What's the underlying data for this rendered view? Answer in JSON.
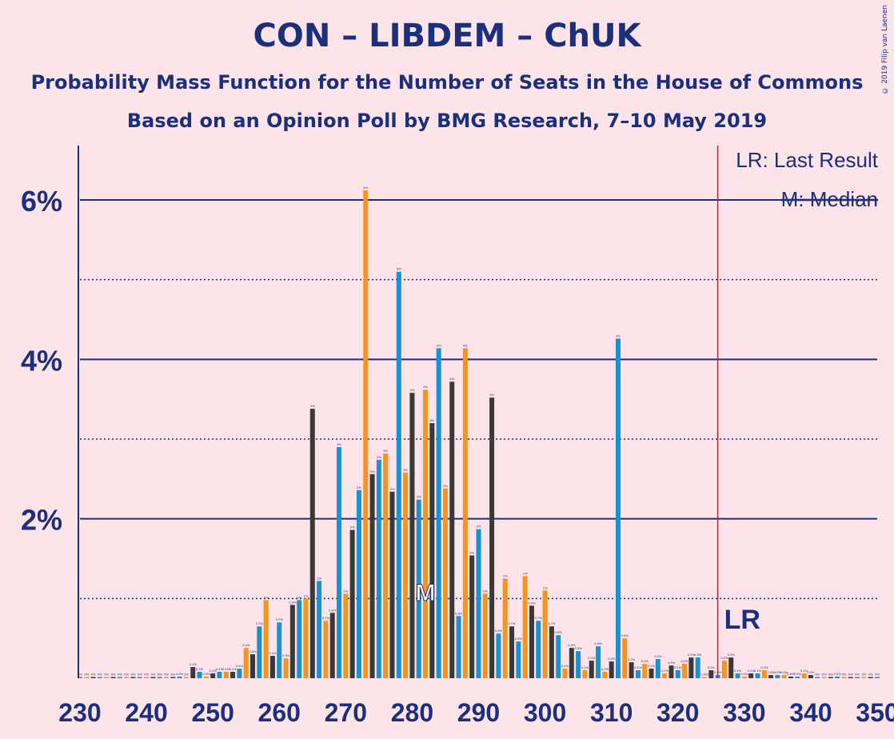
{
  "title": "CON – LIBDEM – ChUK",
  "subtitle": "Probability Mass Function for the Number of Seats in the House of Commons",
  "subtitle2": "Based on an Opinion Poll by BMG Research, 7–10 May 2019",
  "credit": "© 2019 Filip van Laenen",
  "legend": {
    "lr": "LR: Last Result",
    "median": "M: Median"
  },
  "markers": {
    "lr_label": "LR",
    "median_label": "M"
  },
  "colors": {
    "background": "#fde4e8",
    "text": "#1b2f7c",
    "bar_blue": "#1892d1",
    "bar_orange": "#f7931e",
    "bar_dark": "#3b3838",
    "last_result_line": "#e0142a"
  },
  "chart_data": {
    "type": "bar",
    "title": "CON – LIBDEM – ChUK",
    "xlabel": "",
    "ylabel": "",
    "xlim": [
      230,
      350
    ],
    "ylim": [
      0,
      6.7
    ],
    "x_ticks": [
      "230",
      "240",
      "250",
      "260",
      "270",
      "280",
      "290",
      "300",
      "310",
      "320",
      "330",
      "340",
      "350"
    ],
    "y_ticks": [
      "2%",
      "4%",
      "6%"
    ],
    "last_result": 326,
    "median": 282,
    "color_cycle": [
      "blue",
      "orange",
      "dark"
    ],
    "x": [
      230,
      231,
      232,
      233,
      234,
      235,
      236,
      237,
      238,
      239,
      240,
      241,
      242,
      243,
      244,
      245,
      246,
      247,
      248,
      249,
      250,
      251,
      252,
      253,
      254,
      255,
      256,
      257,
      258,
      259,
      260,
      261,
      262,
      263,
      264,
      265,
      266,
      267,
      268,
      269,
      270,
      271,
      272,
      273,
      274,
      275,
      276,
      277,
      278,
      279,
      280,
      281,
      282,
      283,
      284,
      285,
      286,
      287,
      288,
      289,
      290,
      291,
      292,
      293,
      294,
      295,
      296,
      297,
      298,
      299,
      300,
      301,
      302,
      303,
      304,
      305,
      306,
      307,
      308,
      309,
      310,
      311,
      312,
      313,
      314,
      315,
      316,
      317,
      318,
      319,
      320,
      321,
      322,
      323,
      324,
      325,
      326,
      327,
      328,
      329,
      330,
      331,
      332,
      333,
      334,
      335,
      336,
      337,
      338,
      339,
      340,
      341,
      342,
      343,
      344,
      345,
      346,
      347,
      348,
      349,
      350
    ],
    "values": [
      0,
      0,
      0,
      0,
      0,
      0,
      0,
      0,
      0,
      0,
      0,
      0,
      0,
      0,
      0,
      0.02,
      0,
      0.14,
      0.08,
      0.02,
      0.06,
      0.08,
      0.08,
      0.08,
      0.12,
      0.38,
      0.3,
      0.65,
      0.98,
      0.28,
      0.7,
      0.25,
      0.92,
      0.98,
      1.0,
      3.38,
      1.22,
      0.72,
      0.82,
      2.9,
      1.06,
      1.86,
      2.36,
      6.12,
      2.56,
      2.74,
      2.82,
      2.34,
      5.1,
      2.58,
      3.58,
      2.24,
      3.62,
      3.2,
      4.14,
      2.38,
      3.72,
      0.78,
      4.14,
      1.54,
      1.87,
      1.06,
      3.52,
      0.56,
      1.25,
      0.65,
      0.46,
      1.28,
      0.91,
      0.72,
      1.1,
      0.65,
      0.54,
      0.12,
      0.38,
      0.34,
      0.1,
      0.22,
      0.4,
      0.08,
      0.21,
      4.26,
      0.5,
      0.2,
      0.1,
      0.18,
      0.12,
      0.24,
      0.06,
      0.16,
      0.1,
      0.18,
      0.26,
      0.26,
      0.01,
      0.1,
      0.04,
      0.22,
      0.26,
      0.06,
      0.02,
      0.06,
      0.06,
      0.1,
      0.04,
      0.04,
      0.04,
      0.02,
      0.02,
      0.06,
      0.04,
      0,
      0,
      0,
      0.02,
      0,
      0,
      0,
      0,
      0,
      0
    ]
  }
}
